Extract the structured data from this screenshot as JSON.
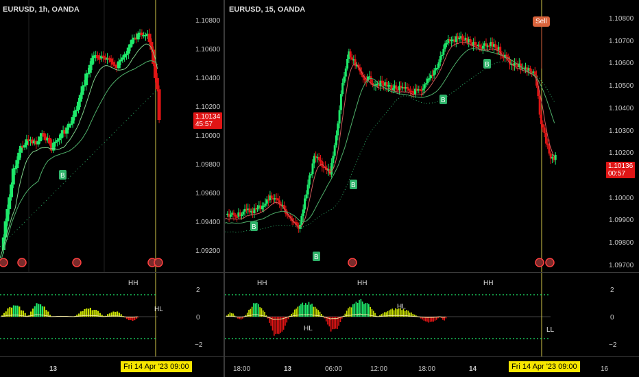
{
  "left_chart": {
    "symbol": "EURUSD, 1h, OANDA",
    "price_axis": [
      "1.10800",
      "1.10600",
      "1.10400",
      "1.10200",
      "1.10000",
      "1.09800",
      "1.09600",
      "1.09400",
      "1.09200"
    ],
    "last_price": "1.10134",
    "countdown": "45:57",
    "signal_labels": [
      "B"
    ],
    "osc_axis": [
      "2",
      "0",
      "−2"
    ],
    "osc_labels": [
      "HH",
      "HL"
    ],
    "time_axis": [
      "13"
    ],
    "crosshair_time": "Fri 14 Apr '23   09:00"
  },
  "right_chart": {
    "symbol": "EURUSD, 15, OANDA",
    "price_axis": [
      "1.10800",
      "1.10700",
      "1.10600",
      "1.10500",
      "1.10400",
      "1.10300",
      "1.10200",
      "1.10100",
      "1.10000",
      "1.09900",
      "1.09800",
      "1.09700"
    ],
    "last_price": "1.10136",
    "countdown": "00:57",
    "sell_label": "Sell",
    "signal_labels": [
      "B",
      "B",
      "B",
      "B",
      "B"
    ],
    "osc_axis": [
      "2",
      "0",
      "−2"
    ],
    "osc_labels": [
      "HH",
      "HH",
      "HH",
      "HL",
      "HL",
      "LL"
    ],
    "time_axis": [
      "18:00",
      "13",
      "06:00",
      "12:00",
      "18:00",
      "14",
      "16"
    ],
    "crosshair_time": "Fri 14 Apr '23   09:00"
  },
  "colors": {
    "bull": "#1ee86a",
    "bear": "#e01515",
    "neutral_bull": "#7a9a6a",
    "neutral_bear": "#9a4a5a",
    "crosshair": "#d4c84a",
    "signal_bg": "#2fb36a"
  }
}
